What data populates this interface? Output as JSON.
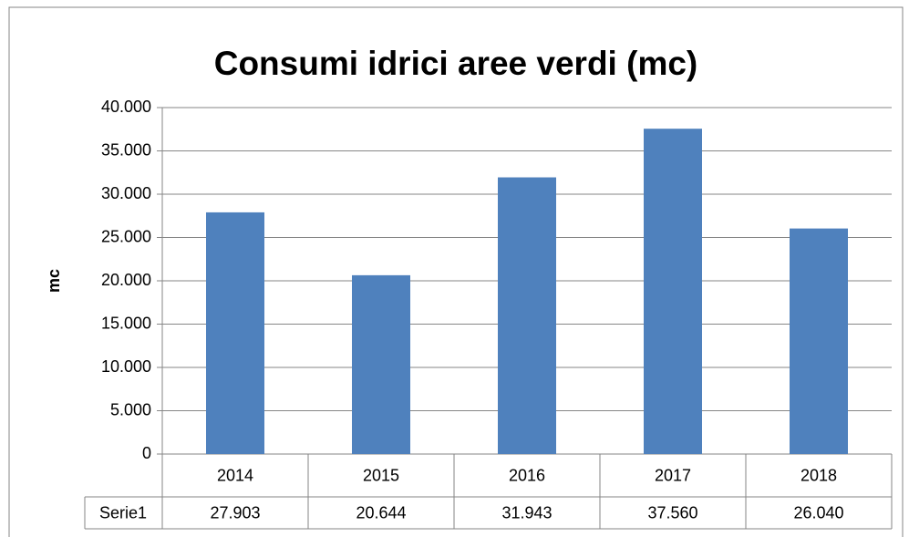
{
  "chart_data": {
    "type": "bar",
    "title": "Consumi idrici aree verdi (mc)",
    "y_label": "mc",
    "categories": [
      "2014",
      "2015",
      "2016",
      "2017",
      "2018"
    ],
    "series": [
      {
        "name": "Serie1",
        "color": "#4f81bd",
        "values": [
          27903,
          20644,
          31943,
          37560,
          26040
        ],
        "value_labels": [
          "27.903",
          "20.644",
          "31.943",
          "37.560",
          "26.040"
        ]
      }
    ],
    "ylim": [
      0,
      40000
    ],
    "yticks": [
      0,
      {
        "value": 5000,
        "label": "5.000"
      },
      {
        "value": 10000,
        "label": "10.000"
      },
      {
        "value": 15000,
        "label": "15.000"
      },
      {
        "value": 20000,
        "label": "20.000"
      },
      {
        "value": 25000,
        "label": "25.000"
      },
      {
        "value": 30000,
        "label": "30.000"
      },
      {
        "value": 35000,
        "label": "35.000"
      },
      {
        "value": 40000,
        "label": "40.000"
      }
    ],
    "grid": true
  }
}
